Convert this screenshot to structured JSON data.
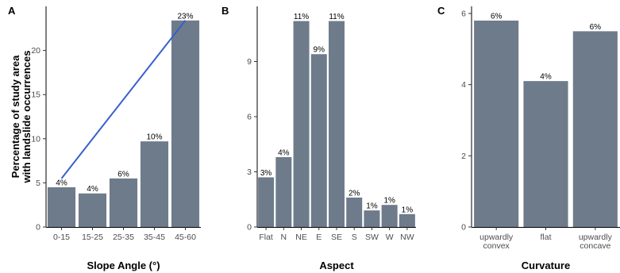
{
  "bar_color": "#6E7B8B",
  "line_color": "#3A5FCD",
  "chart_data": [
    {
      "panel": "A",
      "type": "bar",
      "categories": [
        "0-15",
        "15-25",
        "25-35",
        "35-45",
        "45-60"
      ],
      "values": [
        4.5,
        3.8,
        5.5,
        9.7,
        23.4
      ],
      "data_labels": [
        "4%",
        "4%",
        "6%",
        "10%",
        "23%"
      ],
      "xlabel": "Slope Angle (°)",
      "ylabel": [
        "Percentage of study area",
        "with landslide occurrences"
      ],
      "ylim": [
        0,
        25
      ],
      "yticks": [
        0,
        5,
        10,
        15,
        20
      ],
      "trend_line": {
        "from": {
          "category": "0-15",
          "y": 5.5
        },
        "to": {
          "category": "45-60",
          "y": 23.4
        }
      },
      "grid": false
    },
    {
      "panel": "B",
      "type": "bar",
      "categories": [
        "Flat",
        "N",
        "NE",
        "E",
        "SE",
        "S",
        "SW",
        "W",
        "NW"
      ],
      "values": [
        2.7,
        3.8,
        11.2,
        9.4,
        11.2,
        1.6,
        0.9,
        1.2,
        0.7
      ],
      "data_labels": [
        "3%",
        "4%",
        "11%",
        "9%",
        "11%",
        "2%",
        "1%",
        "1%",
        "1%"
      ],
      "xlabel": "Aspect",
      "ylim": [
        0,
        12
      ],
      "yticks": [
        0,
        3,
        6,
        9
      ],
      "grid": false
    },
    {
      "panel": "C",
      "type": "bar",
      "categories": [
        [
          "upwardly",
          "convex"
        ],
        [
          "flat"
        ],
        [
          "upwardly",
          "concave"
        ]
      ],
      "values": [
        5.8,
        4.1,
        5.5
      ],
      "data_labels": [
        "6%",
        "4%",
        "6%"
      ],
      "xlabel": "Curvature",
      "ylim": [
        0,
        6.2
      ],
      "yticks": [
        0,
        2,
        4,
        6
      ],
      "grid": false
    }
  ]
}
